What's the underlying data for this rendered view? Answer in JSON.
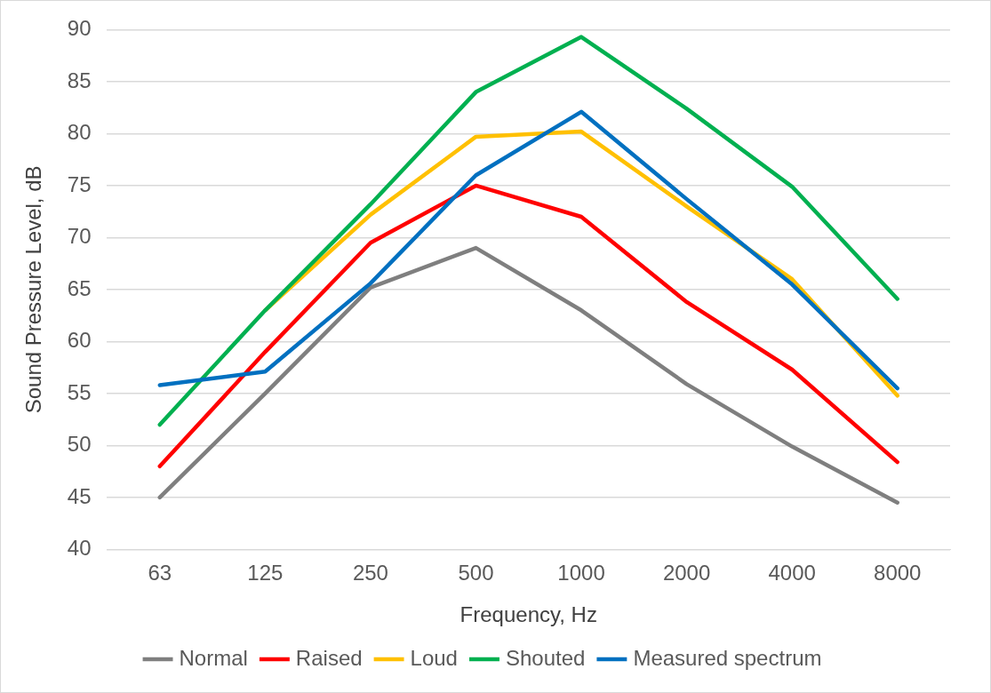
{
  "chart_data": {
    "type": "line",
    "xlabel": "Frequency, Hz",
    "ylabel": "Sound Pressure Level, dB",
    "categories": [
      "63",
      "125",
      "250",
      "500",
      "1000",
      "2000",
      "4000",
      "8000"
    ],
    "series": [
      {
        "name": "Normal",
        "color": "#7f7f7f",
        "values": [
          45,
          55,
          65.2,
          69,
          63,
          55.9,
          49.9,
          44.5
        ]
      },
      {
        "name": "Raised",
        "color": "#ff0000",
        "values": [
          48,
          59,
          69.5,
          75,
          72,
          63.8,
          57.3,
          48.4
        ]
      },
      {
        "name": "Loud",
        "color": "#ffc000",
        "values": [
          null,
          63,
          72.2,
          79.7,
          80.2,
          73,
          66,
          54.8
        ]
      },
      {
        "name": "Shouted",
        "color": "#00b050",
        "values": [
          52,
          63,
          73.2,
          84,
          89.3,
          82.4,
          74.9,
          64.1
        ]
      },
      {
        "name": "Measured spectrum",
        "color": "#0070c0",
        "values": [
          55.8,
          57.1,
          65.6,
          76,
          82.1,
          73.7,
          65.5,
          55.5
        ]
      }
    ],
    "ylim": [
      40,
      90
    ],
    "yticks": [
      40,
      45,
      50,
      55,
      60,
      65,
      70,
      75,
      80,
      85,
      90
    ],
    "grid": "y",
    "legend": "bottom",
    "marker": "none",
    "line_style": "solid"
  }
}
